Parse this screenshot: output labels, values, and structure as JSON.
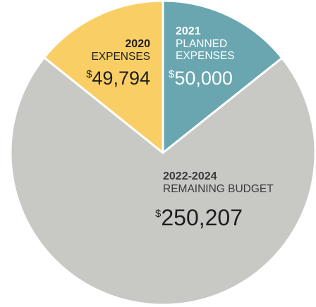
{
  "chart_data": {
    "type": "pie",
    "slices": [
      {
        "key": "planned",
        "year": "2021",
        "label_lines": [
          "PLANNED",
          "EXPENSES"
        ],
        "currency": "$",
        "amount": "50,000",
        "value": 50000,
        "color": "#6aa6b0",
        "text_color": "#ffffff"
      },
      {
        "key": "remaining",
        "year": "2022-2024",
        "label_lines": [
          "REMAINING BUDGET"
        ],
        "currency": "$",
        "amount": "250,207",
        "value": 250207,
        "color": "#c8c8c5",
        "text_color": "#3a3a3a"
      },
      {
        "key": "expenses",
        "year": "2020",
        "label_lines": [
          "EXPENSES"
        ],
        "currency": "$",
        "amount": "49,794",
        "value": 49794,
        "color": "#f9cf65",
        "text_color": "#1e1e1e"
      }
    ]
  }
}
